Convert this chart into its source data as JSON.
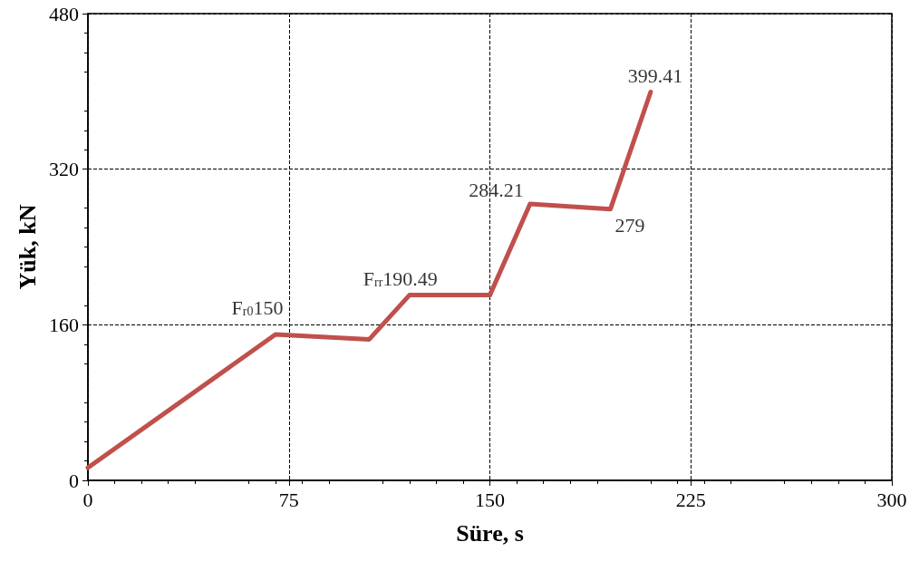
{
  "chart_data": {
    "type": "line",
    "xlabel": "Süre, s",
    "ylabel": "Yük, kN",
    "x": [
      0,
      70,
      105,
      120,
      150,
      165,
      195,
      210
    ],
    "series": [
      {
        "color": "#c0504d",
        "values": [
          13,
          150,
          145,
          190.49,
          190.49,
          284.21,
          279,
          399.41
        ]
      }
    ],
    "xlim": [
      0,
      300
    ],
    "xticks": [
      0,
      75,
      150,
      225,
      300
    ],
    "ylim": [
      0,
      480
    ],
    "yticks": [
      0,
      160,
      320,
      480
    ],
    "grid": true,
    "marker": "none",
    "line_style": "solid",
    "annotations": [
      {
        "text": "F$_{r0}$150",
        "x": 70,
        "y": 150
      },
      {
        "text": "F$_{rr}$190.49",
        "x": 120,
        "y": 190.49
      },
      {
        "text": "284.21",
        "x": 165,
        "y": 284.21
      },
      {
        "text": "279",
        "x": 195,
        "y": 279
      },
      {
        "text": "399.41",
        "x": 210,
        "y": 399.41
      }
    ]
  }
}
